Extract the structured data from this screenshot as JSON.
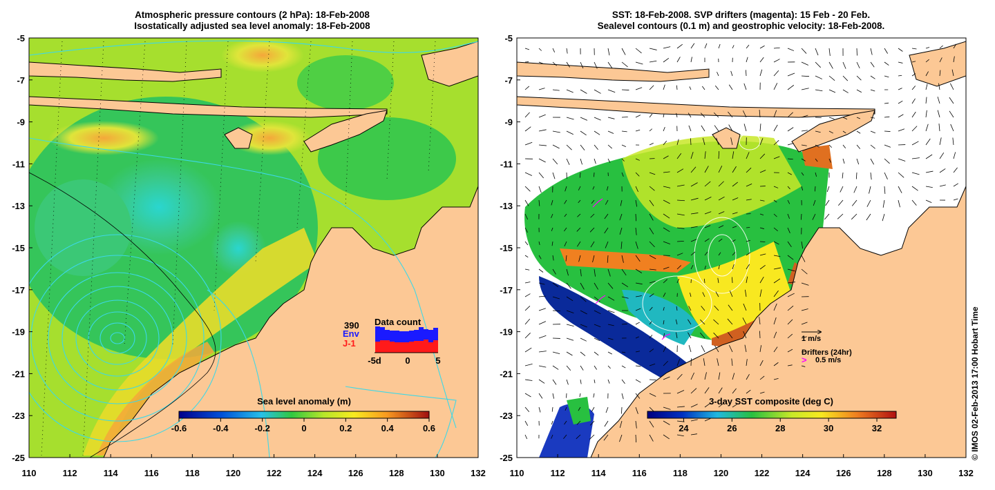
{
  "left_panel": {
    "title_line1": "Atmospheric pressure contours (2 hPa): 18-Feb-2008",
    "title_line2": "Isostatically adjusted sea level anomaly: 18-Feb-2008",
    "y_ticks": [
      "-5",
      "-7",
      "-9",
      "-11",
      "-13",
      "-15",
      "-17",
      "-19",
      "-21",
      "-23",
      "-25"
    ],
    "x_ticks": [
      "110",
      "112",
      "114",
      "116",
      "118",
      "120",
      "122",
      "124",
      "126",
      "128",
      "130",
      "132"
    ],
    "colorbar": {
      "title": "Sea level anomaly (m)",
      "ticks": [
        "-0.6",
        "-0.4",
        "-0.2",
        "0",
        "0.2",
        "0.4",
        "0.6"
      ],
      "range": [
        -0.6,
        0.6
      ]
    },
    "data_count": {
      "title": "Data count",
      "number": "390",
      "series_labels": [
        "Env",
        "J-1"
      ],
      "series_colors": [
        "#1a1aff",
        "#ff1a1a"
      ],
      "x_ticks": [
        "-5d",
        "0",
        "5"
      ]
    }
  },
  "right_panel": {
    "title_line1": "SST: 18-Feb-2008. SVP drifters (magenta): 15 Feb - 20 Feb.",
    "title_line2": "Sealevel contours (0.1 m) and geostrophic velocity: 18-Feb-2008.",
    "y_ticks": [
      "-5",
      "-7",
      "-9",
      "-11",
      "-13",
      "-15",
      "-17",
      "-19",
      "-21",
      "-23",
      "-25"
    ],
    "x_ticks": [
      "110",
      "112",
      "114",
      "116",
      "118",
      "120",
      "122",
      "124",
      "126",
      "128",
      "130",
      "132"
    ],
    "velocity_legend": "1 m/s",
    "drifter_legend_title": "Drifters (24hr)",
    "drifter_legend_value": "0.5 m/s",
    "colorbar": {
      "title": "3-day SST composite (deg C)",
      "ticks": [
        "24",
        "26",
        "28",
        "30",
        "32"
      ],
      "range": [
        22.5,
        32.8
      ]
    }
  },
  "credit": "© IMOS 02-Feb-2013 17:00 Hobart Time",
  "colors": {
    "land": "#fcc895",
    "coast": "#000000",
    "pressure_contour": "#3cd8e8",
    "drifter": "#ff00ff"
  }
}
